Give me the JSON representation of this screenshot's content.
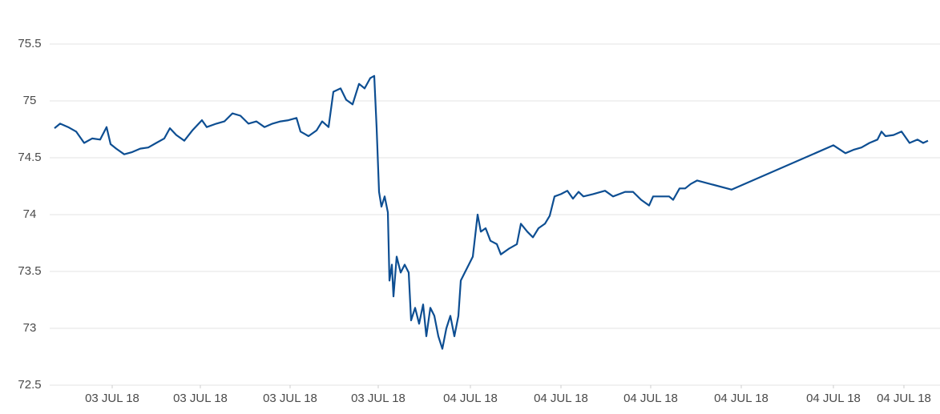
{
  "chart_data": {
    "type": "line",
    "color": "#0d4e92",
    "grid": true,
    "x": [
      6,
      13,
      23,
      33,
      43,
      53,
      63,
      71,
      76,
      83,
      93,
      103,
      113,
      123,
      133,
      143,
      150,
      158,
      168,
      178,
      190,
      196,
      208,
      218,
      228,
      238,
      248,
      258,
      268,
      278,
      288,
      298,
      308,
      313,
      323,
      333,
      340,
      348,
      354,
      363,
      370,
      378,
      386,
      393,
      400,
      405,
      408,
      411,
      414,
      418,
      422,
      424,
      427,
      429,
      433,
      438,
      443,
      448,
      451,
      456,
      461,
      466,
      470,
      475,
      480,
      485,
      490,
      495,
      500,
      505,
      510,
      513,
      518,
      523,
      528,
      534,
      538,
      544,
      550,
      558,
      563,
      573,
      583,
      588,
      596,
      603,
      610,
      618,
      624,
      630,
      638,
      646,
      653,
      660,
      666,
      678,
      693,
      703,
      718,
      728,
      738,
      748,
      753,
      763,
      773,
      778,
      786,
      793,
      800,
      808,
      851,
      978,
      993,
      1003,
      1013,
      1023,
      1033,
      1038,
      1043,
      1053,
      1063,
      1068,
      1073,
      1083,
      1090,
      1096
    ],
    "values": [
      74.76,
      74.8,
      74.77,
      74.73,
      74.63,
      74.67,
      74.66,
      74.77,
      74.62,
      74.58,
      74.53,
      74.55,
      74.58,
      74.59,
      74.63,
      74.67,
      74.76,
      74.7,
      74.65,
      74.74,
      74.83,
      74.77,
      74.8,
      74.82,
      74.89,
      74.87,
      74.8,
      74.82,
      74.77,
      74.8,
      74.82,
      74.83,
      74.85,
      74.73,
      74.69,
      74.74,
      74.82,
      74.77,
      75.08,
      75.11,
      75.01,
      74.97,
      75.15,
      75.11,
      75.2,
      75.22,
      74.76,
      74.2,
      74.07,
      74.16,
      74.02,
      73.42,
      73.56,
      73.28,
      73.63,
      73.49,
      73.56,
      73.49,
      73.07,
      73.18,
      73.04,
      73.21,
      72.93,
      73.18,
      73.11,
      72.93,
      72.82,
      73.0,
      73.11,
      72.93,
      73.11,
      73.42,
      73.49,
      73.56,
      73.63,
      74.0,
      73.85,
      73.88,
      73.77,
      73.74,
      73.65,
      73.7,
      73.74,
      73.92,
      73.85,
      73.8,
      73.88,
      73.92,
      73.99,
      74.16,
      74.18,
      74.21,
      74.14,
      74.2,
      74.16,
      74.18,
      74.21,
      74.16,
      74.2,
      74.2,
      74.13,
      74.08,
      74.16,
      74.16,
      74.16,
      74.13,
      74.23,
      74.23,
      74.27,
      74.3,
      74.22,
      74.61,
      74.54,
      74.57,
      74.59,
      74.63,
      74.66,
      74.73,
      74.69,
      74.7,
      74.73,
      74.68,
      74.63,
      74.66,
      74.63,
      74.65
    ],
    "xlim": [
      0,
      1111
    ],
    "xticks": [
      {
        "value": 78,
        "label": "03 JUL 18"
      },
      {
        "value": 188,
        "label": "03 JUL 18"
      },
      {
        "value": 300,
        "label": "03 JUL 18"
      },
      {
        "value": 410,
        "label": "03 JUL 18"
      },
      {
        "value": 525,
        "label": "04 JUL 18"
      },
      {
        "value": 638,
        "label": "04 JUL 18"
      },
      {
        "value": 750,
        "label": "04 JUL 18"
      },
      {
        "value": 863,
        "label": "04 JUL 18"
      },
      {
        "value": 978,
        "label": "04 JUL 18"
      },
      {
        "value": 1066,
        "label": "04 JUL 18"
      }
    ],
    "ylim": [
      72.5,
      75.5
    ],
    "yticks": [
      72.5,
      73,
      73.5,
      74,
      74.5,
      75,
      75.5
    ]
  }
}
